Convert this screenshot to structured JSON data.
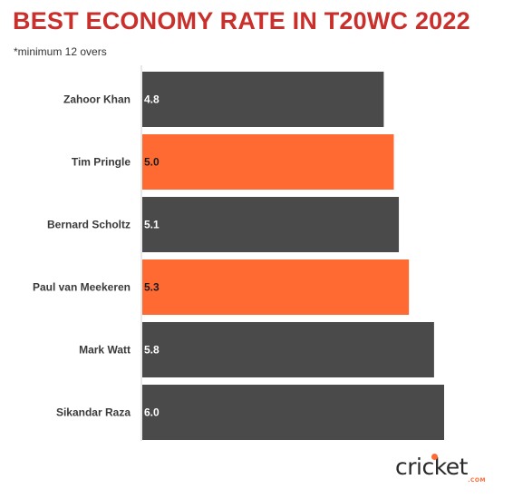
{
  "chart_data": {
    "type": "bar",
    "orientation": "horizontal",
    "title": "BEST ECONOMY RATE IN T20WC 2022",
    "subtitle": "*minimum 12 overs",
    "categories": [
      "Zahoor Khan",
      "Tim Pringle",
      "Bernard Scholtz",
      "Paul van Meekeren",
      "Mark Watt",
      "Sikandar Raza"
    ],
    "values": [
      4.8,
      5.0,
      5.1,
      5.3,
      5.8,
      6.0
    ],
    "data_labels": [
      "4.8",
      "5.0",
      "5.1",
      "5.3",
      "5.8",
      "6.0"
    ],
    "highlight": [
      false,
      true,
      false,
      true,
      false,
      false
    ],
    "xlim": [
      0,
      6.0
    ],
    "grid": false,
    "colors": {
      "default": "#4a4a4a",
      "highlight": "#ff6a33",
      "title": "#c9302c"
    }
  },
  "logo": {
    "word": "cricket",
    "sub": ".COM"
  }
}
